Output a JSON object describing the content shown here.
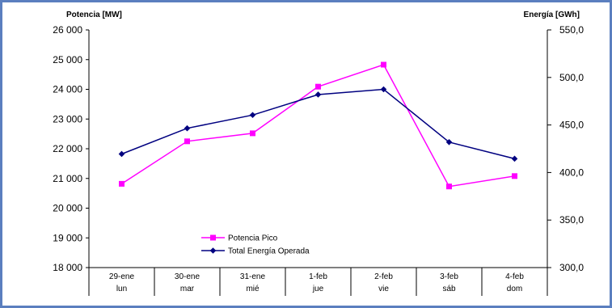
{
  "chart_data": {
    "type": "line",
    "categories": [
      {
        "date": "29-ene",
        "day": "lun"
      },
      {
        "date": "30-ene",
        "day": "mar"
      },
      {
        "date": "31-ene",
        "day": "mié"
      },
      {
        "date": "1-feb",
        "day": "jue"
      },
      {
        "date": "2-feb",
        "day": "vie"
      },
      {
        "date": "3-feb",
        "day": "sáb"
      },
      {
        "date": "4-feb",
        "day": "dom"
      }
    ],
    "y_left": {
      "label": "Potencia [MW]",
      "min": 18000,
      "max": 26000,
      "step": 1000,
      "tick_labels": [
        "18 000",
        "19 000",
        "20 000",
        "21 000",
        "22 000",
        "23 000",
        "24 000",
        "25 000",
        "26 000"
      ]
    },
    "y_right": {
      "label": "Energía [GWh]",
      "min": 300,
      "max": 550,
      "step": 50,
      "tick_labels": [
        "300,0",
        "350,0",
        "400,0",
        "450,0",
        "500,0",
        "550,0"
      ]
    },
    "series": [
      {
        "name": "Potencia Pico",
        "axis": "left",
        "color": "#ff00ff",
        "marker": "square",
        "values": [
          20820,
          22250,
          22520,
          24090,
          24830,
          20730,
          21080
        ]
      },
      {
        "name": "Total Energía Operada",
        "axis": "right",
        "color": "#000080",
        "marker": "diamond",
        "values": [
          419.5,
          446.5,
          460.5,
          482.0,
          487.5,
          432.0,
          414.5
        ]
      }
    ],
    "legend": "bottom-center",
    "grid": false
  }
}
